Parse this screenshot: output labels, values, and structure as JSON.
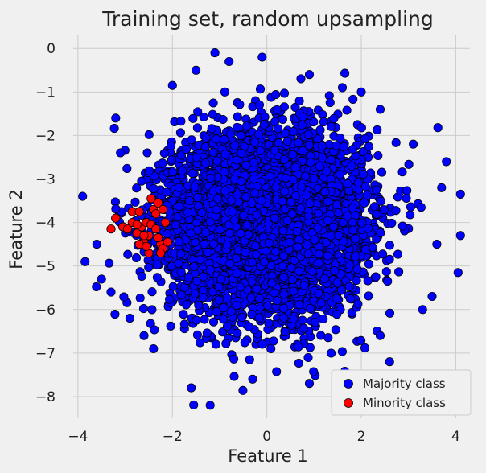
{
  "chart_data": {
    "type": "scatter",
    "title": "Training set, random upsampling",
    "xlabel": "Feature 1",
    "ylabel": "Feature 2",
    "xlim": [
      -4.1,
      4.3
    ],
    "ylim": [
      -8.5,
      0.3
    ],
    "xticks": [
      -4,
      -2,
      0,
      2,
      4
    ],
    "xtick_labels": [
      "−4",
      "−2",
      "0",
      "2",
      "4"
    ],
    "yticks": [
      0,
      -1,
      -2,
      -3,
      -4,
      -5,
      -6,
      -7,
      -8
    ],
    "ytick_labels": [
      "0",
      "−1",
      "−2",
      "−3",
      "−4",
      "−5",
      "−6",
      "−7",
      "−8"
    ],
    "grid": true,
    "legend_position": "lower-right",
    "series": [
      {
        "name": "Majority class",
        "color": "#0000ff",
        "edgecolor": "#000000",
        "center": [
          0,
          -4
        ],
        "std": 1.0,
        "count_approx": 6000,
        "points": [
          [
            -3.9,
            -3.4
          ],
          [
            -3.85,
            -4.9
          ],
          [
            -3.6,
            -4.5
          ],
          [
            -3.5,
            -5.3
          ],
          [
            -3.3,
            -5.6
          ],
          [
            -3.1,
            -2.4
          ],
          [
            -3.2,
            -3.9
          ],
          [
            -1.1,
            -0.1
          ],
          [
            -0.1,
            -0.2
          ],
          [
            -0.8,
            -0.3
          ],
          [
            0.9,
            -0.6
          ],
          [
            -2.0,
            -0.85
          ],
          [
            4.1,
            -3.35
          ],
          [
            4.1,
            -4.3
          ],
          [
            4.05,
            -5.15
          ],
          [
            3.8,
            -2.6
          ],
          [
            3.7,
            -3.2
          ],
          [
            3.6,
            -4.5
          ],
          [
            3.5,
            -5.7
          ],
          [
            3.3,
            -6.0
          ],
          [
            3.1,
            -2.2
          ],
          [
            -1.6,
            -7.8
          ],
          [
            -1.2,
            -8.2
          ],
          [
            -0.3,
            -7.6
          ],
          [
            0.9,
            -7.7
          ],
          [
            2.6,
            -7.2
          ],
          [
            2.4,
            -6.6
          ],
          [
            -2.4,
            -6.9
          ],
          [
            -2.9,
            -6.2
          ],
          [
            -3.2,
            -1.6
          ],
          [
            2.0,
            -1.0
          ],
          [
            2.4,
            -1.4
          ],
          [
            -1.5,
            -0.5
          ],
          [
            1.6,
            -0.9
          ],
          [
            -2.6,
            -6.6
          ]
        ]
      },
      {
        "name": "Minority class",
        "color": "#ff0000",
        "edgecolor": "#000000",
        "points": [
          [
            -3.3,
            -4.15
          ],
          [
            -3.2,
            -3.9
          ],
          [
            -3.05,
            -4.1
          ],
          [
            -2.95,
            -4.15
          ],
          [
            -2.85,
            -3.75
          ],
          [
            -2.85,
            -4.0
          ],
          [
            -2.75,
            -4.25
          ],
          [
            -2.7,
            -3.75
          ],
          [
            -2.65,
            -4.1
          ],
          [
            -2.6,
            -4.45
          ],
          [
            -2.55,
            -4.0
          ],
          [
            -2.5,
            -4.3
          ],
          [
            -2.5,
            -4.7
          ],
          [
            -2.45,
            -3.45
          ],
          [
            -2.4,
            -3.7
          ],
          [
            -2.35,
            -3.8
          ],
          [
            -2.3,
            -3.55
          ],
          [
            -2.25,
            -4.5
          ],
          [
            -2.2,
            -4.6
          ],
          [
            -2.2,
            -3.7
          ],
          [
            -2.15,
            -4.0
          ],
          [
            -2.1,
            -4.45
          ],
          [
            -2.25,
            -4.7
          ],
          [
            -2.7,
            -4.5
          ],
          [
            -2.6,
            -4.3
          ],
          [
            -2.45,
            -4.05
          ],
          [
            -2.35,
            -4.15
          ],
          [
            -2.75,
            -4.05
          ],
          [
            -2.55,
            -4.55
          ],
          [
            -2.3,
            -4.35
          ]
        ]
      }
    ]
  }
}
